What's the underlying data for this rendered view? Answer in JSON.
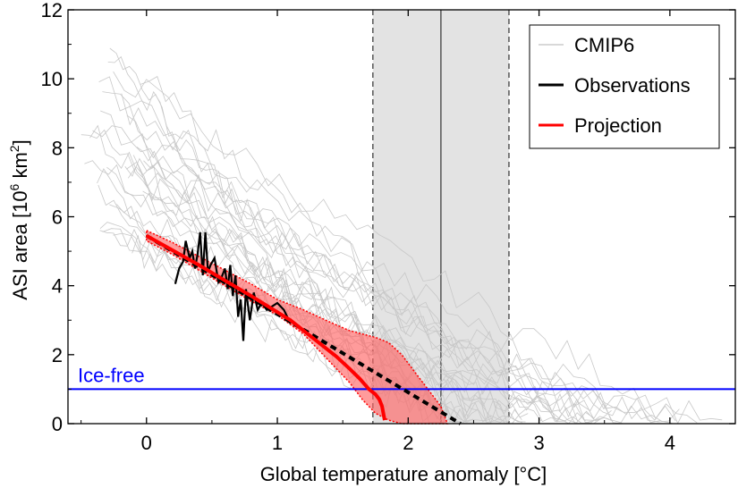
{
  "chart_data": {
    "type": "line",
    "xlabel": "Global temperature anomaly [°C]",
    "ylabel_main": "ASI area [10",
    "ylabel_sup": "6",
    "ylabel_mid": " km",
    "ylabel_sup2": "2",
    "ylabel_end": "]",
    "xlim": [
      -0.6,
      4.5
    ],
    "ylim": [
      0,
      12
    ],
    "xticks": [
      0,
      1,
      2,
      3,
      4
    ],
    "xtick_labels": [
      "0",
      "1",
      "2",
      "3",
      "4"
    ],
    "yticks": [
      0,
      2,
      4,
      6,
      8,
      10,
      12
    ],
    "ytick_labels": [
      "0",
      "2",
      "4",
      "6",
      "8",
      "10",
      "12"
    ],
    "grid": false,
    "legend_position": "top-right",
    "legend": [
      {
        "label": "CMIP6",
        "color": "#cccccc"
      },
      {
        "label": "Observations",
        "color": "#000000"
      },
      {
        "label": "Projection",
        "color": "#ff0000"
      }
    ],
    "ice_free": {
      "label": "Ice-free",
      "y": 1.0,
      "color": "#0000ff"
    },
    "vertical_band": {
      "x0": 1.73,
      "x1": 2.77,
      "center": 2.25,
      "color": "#e3e3e3"
    },
    "observations": {
      "color": "#000000",
      "x": [
        0.22,
        0.25,
        0.28,
        0.3,
        0.33,
        0.35,
        0.37,
        0.39,
        0.41,
        0.43,
        0.45,
        0.47,
        0.49,
        0.52,
        0.55,
        0.57,
        0.6,
        0.62,
        0.64,
        0.66,
        0.68,
        0.7,
        0.72,
        0.74,
        0.76,
        0.79,
        0.82,
        0.85,
        0.88,
        0.92,
        0.96,
        1.0,
        1.05,
        1.1
      ],
      "y": [
        4.05,
        4.5,
        4.7,
        5.3,
        4.8,
        5.0,
        4.5,
        4.9,
        5.55,
        4.3,
        5.55,
        4.4,
        4.6,
        4.8,
        4.1,
        4.2,
        4.5,
        3.9,
        4.6,
        3.7,
        4.3,
        3.1,
        3.6,
        2.4,
        3.9,
        3.0,
        3.8,
        3.3,
        3.5,
        3.3,
        3.4,
        3.5,
        3.3,
        2.9
      ]
    },
    "projection": {
      "color": "#ff0000",
      "x": [
        0,
        0.4,
        0.8,
        1.1,
        1.3,
        1.45,
        1.55,
        1.63,
        1.7,
        1.75,
        1.78,
        1.8,
        1.82
      ],
      "y": [
        5.45,
        4.6,
        3.7,
        3.0,
        2.4,
        1.95,
        1.6,
        1.3,
        1.0,
        0.85,
        0.7,
        0.5,
        0.1
      ]
    },
    "projection_band": {
      "color": "#ff6666",
      "x": [
        0,
        0.2,
        0.4,
        0.6,
        0.8,
        1.0,
        1.2,
        1.4,
        1.55,
        1.65,
        1.75,
        1.85,
        1.95,
        2.05,
        2.15,
        2.25,
        2.3
      ],
      "upper": [
        5.6,
        5.25,
        4.85,
        4.45,
        4.05,
        3.6,
        3.3,
        2.95,
        2.7,
        2.6,
        2.5,
        2.35,
        2.0,
        1.5,
        1.0,
        0.5,
        0.0
      ],
      "lower": [
        5.3,
        4.9,
        4.45,
        4.0,
        3.55,
        3.15,
        2.6,
        1.8,
        1.2,
        0.7,
        0.3,
        0.1,
        0.0,
        0.0,
        0.0,
        0.0,
        0.0
      ]
    },
    "linear_fit": {
      "color": "#000000",
      "x": [
        0.0,
        2.4
      ],
      "y": [
        5.45,
        0.0
      ]
    },
    "cmip6_color": "#c8c8c8"
  }
}
